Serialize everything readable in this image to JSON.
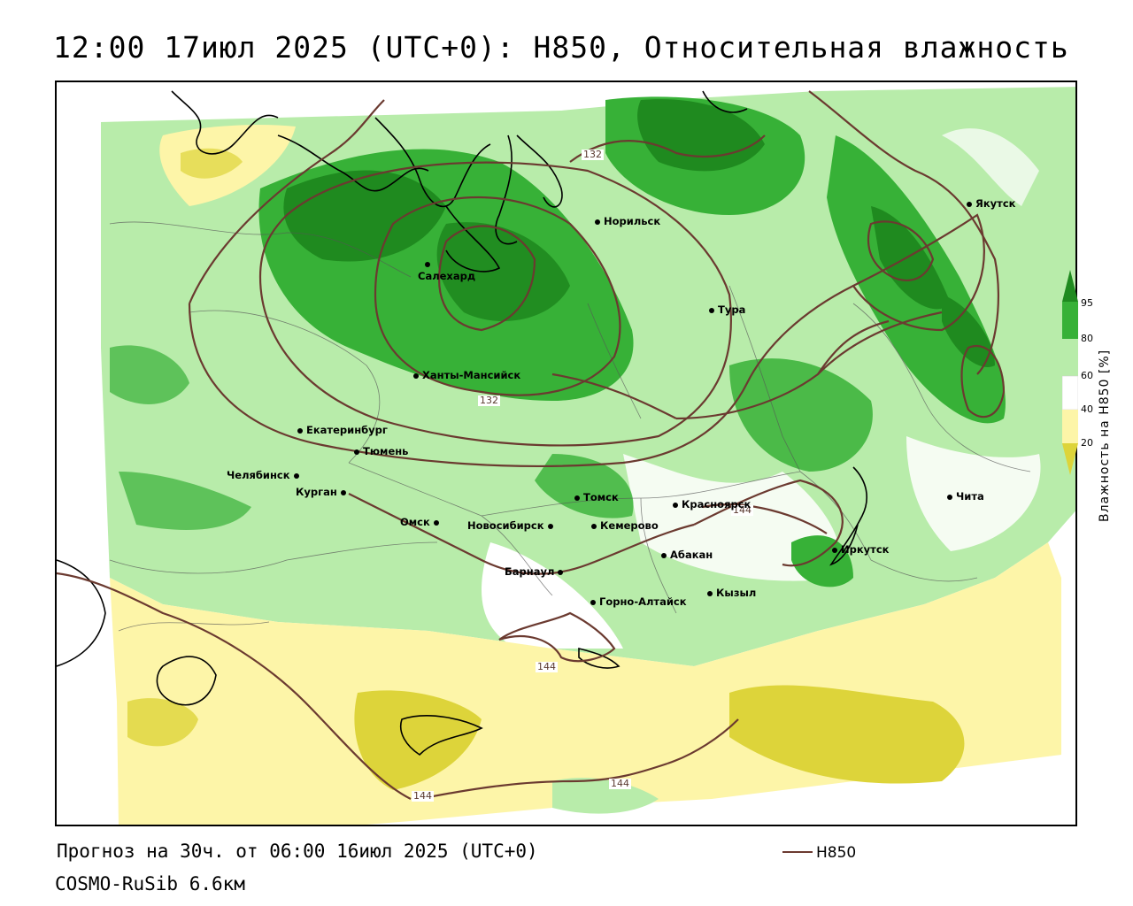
{
  "title": "12:00 17июл 2025 (UTC+0): H850, Относительная влажность",
  "footer": {
    "forecast": "Прогноз на 30ч. от 06:00 16июл 2025 (UTC+0)",
    "model": "COSMO-RuSib 6.6км",
    "legend_label": "H850"
  },
  "colorbar": {
    "title": "Влажность на H850 [%]",
    "ticks": [
      "95",
      "80",
      "60",
      "40",
      "20"
    ],
    "colors": {
      "above95": "#1f8a1f",
      "80_95": "#37b137",
      "60_80": "#b8ecaa",
      "40_60": "#ffffff",
      "20_40": "#fdf5a8",
      "below20": "#ddd43a"
    }
  },
  "contour_labels": [
    "132",
    "132",
    "144",
    "144",
    "144",
    "144"
  ],
  "cities": [
    {
      "name": "Салехард"
    },
    {
      "name": "Норильск"
    },
    {
      "name": "Якутск"
    },
    {
      "name": "Тура"
    },
    {
      "name": "Ханты-Мансийск"
    },
    {
      "name": "Екатеринбург"
    },
    {
      "name": "Тюмень"
    },
    {
      "name": "Челябинск"
    },
    {
      "name": "Курган"
    },
    {
      "name": "Омск"
    },
    {
      "name": "Новосибирск"
    },
    {
      "name": "Томск"
    },
    {
      "name": "Кемерово"
    },
    {
      "name": "Красноярск"
    },
    {
      "name": "Абакан"
    },
    {
      "name": "Иркутск"
    },
    {
      "name": "Чита"
    },
    {
      "name": "Барнаул"
    },
    {
      "name": "Горно-Алтайск"
    },
    {
      "name": "Кызыл"
    }
  ]
}
